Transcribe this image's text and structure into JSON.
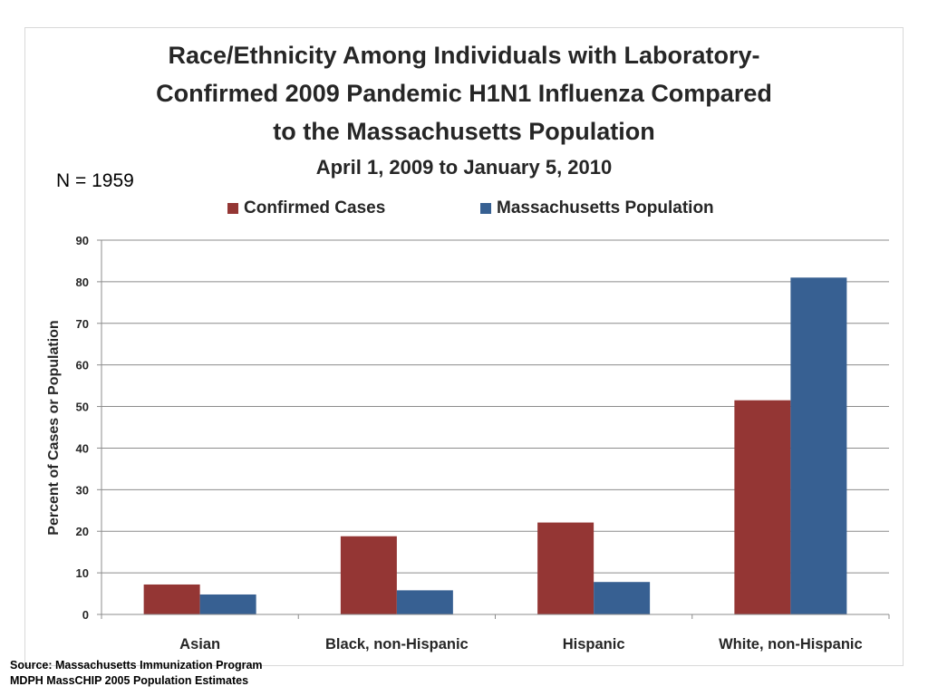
{
  "chart_data": {
    "type": "bar",
    "title_lines": [
      "Race/Ethnicity Among  Individuals with Laboratory-",
      "Confirmed 2009 Pandemic H1N1 Influenza Compared",
      "to the Massachusetts Population"
    ],
    "subtitle": "April 1, 2009 to January 5, 2010",
    "annotation": "N = 1959",
    "categories": [
      "Asian",
      "Black, non-Hispanic",
      "Hispanic",
      "White, non-Hispanic"
    ],
    "series": [
      {
        "name": "Confirmed Cases",
        "color": "#943634",
        "values": [
          7.2,
          18.8,
          22.1,
          51.5
        ]
      },
      {
        "name": "Massachusetts Population",
        "color": "#376092",
        "values": [
          4.8,
          5.8,
          7.8,
          81.0
        ]
      }
    ],
    "ylabel": "Percent of Cases  or Population",
    "ylim": [
      0,
      90
    ],
    "yticks": [
      0,
      10,
      20,
      30,
      40,
      50,
      60,
      70,
      80,
      90
    ],
    "grid": true,
    "legend_position": "top"
  },
  "source_lines": [
    "Source: Massachusetts Immunization Program",
    "MDPH MassCHIP 2005 Population Estimates"
  ]
}
